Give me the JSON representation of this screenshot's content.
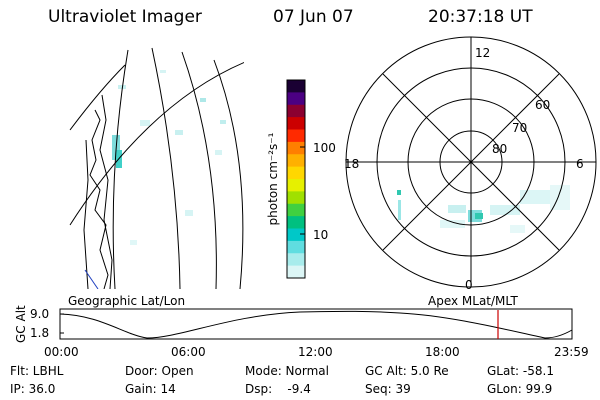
{
  "header": {
    "instrument": "Ultraviolet Imager",
    "date": "07 Jun 07",
    "time": "20:37:18 UT"
  },
  "left_panel": {
    "label": "Geographic Lat/Lon"
  },
  "right_panel": {
    "label": "Apex MLat/MLT",
    "mlt_labels": {
      "top": "12",
      "left": "18",
      "right": "6",
      "bottom": "0"
    },
    "lat_labels": [
      "60",
      "70",
      "80"
    ]
  },
  "colorbar": {
    "unit_label": "photon cm⁻²s⁻¹",
    "ticks": [
      "100",
      "10"
    ],
    "colors": [
      "#1a0033",
      "#4b0082",
      "#8b0030",
      "#cc0000",
      "#ff2a00",
      "#ff7f00",
      "#ffb000",
      "#ffd700",
      "#e6f000",
      "#a0e000",
      "#40d040",
      "#00c080",
      "#00c8c8",
      "#60dde0",
      "#a8ecec",
      "#dcf6f6"
    ]
  },
  "timeline": {
    "axis_label": "GC Alt",
    "y_ticks": [
      "9.0",
      "1.8"
    ],
    "x_ticks": [
      "00:00",
      "06:00",
      "12:00",
      "18:00",
      "23:59"
    ],
    "marker_color": "#cc0000"
  },
  "info": {
    "flt": "Flt: LBHL",
    "ip": "IP: 36.0",
    "door": "Door: Open",
    "gain": "Gain: 14",
    "mode": "Mode: Normal",
    "dsp": "Dsp:    -9.4",
    "gcalt": "GC Alt: 5.0 Re",
    "seq": "Seq: 39",
    "glat": "GLat: -58.1",
    "glon": "GLon: 99.9"
  }
}
